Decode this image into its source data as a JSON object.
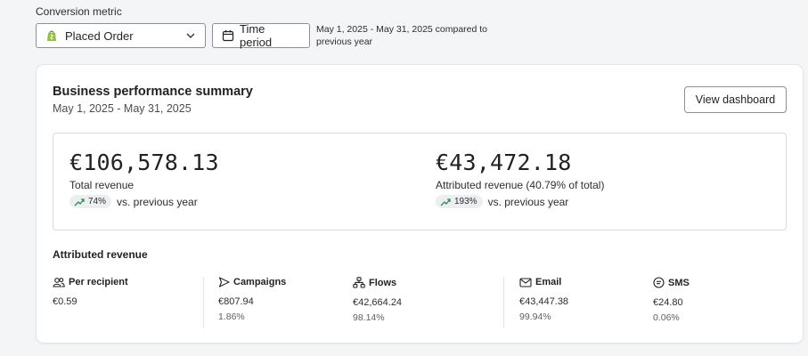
{
  "filters": {
    "metric_label": "Conversion metric",
    "metric_value": "Placed Order",
    "time_button": "Time period",
    "period_note": "May 1, 2025 - May 31, 2025 compared to previous year"
  },
  "card": {
    "title": "Business performance summary",
    "date_range": "May 1, 2025 - May 31, 2025",
    "view_button": "View dashboard"
  },
  "kpis": {
    "total": {
      "value": "€106,578.13",
      "label": "Total revenue",
      "change": "74%",
      "change_text": "vs. previous year"
    },
    "attributed": {
      "value": "€43,472.18",
      "label": "Attributed revenue (40.79% of total)",
      "change": "193%",
      "change_text": "vs. previous year"
    }
  },
  "attributed_section": {
    "title": "Attributed revenue",
    "columns": [
      {
        "label": "Per recipient",
        "icon": "users-icon",
        "value": "€0.59",
        "percent": ""
      },
      {
        "label": "Campaigns",
        "icon": "send-icon",
        "value": "€807.94",
        "percent": "1.86%"
      },
      {
        "label": "Flows",
        "icon": "flows-icon",
        "value": "€42,664.24",
        "percent": "98.14%"
      },
      {
        "label": "Email",
        "icon": "mail-icon",
        "value": "€43,447.38",
        "percent": "99.94%"
      },
      {
        "label": "SMS",
        "icon": "sms-icon",
        "value": "€24.80",
        "percent": "0.06%"
      }
    ]
  },
  "colors": {
    "trend_up": "#2e8b57",
    "shopify_green": "#95bf47",
    "border": "#d7d9dc"
  }
}
